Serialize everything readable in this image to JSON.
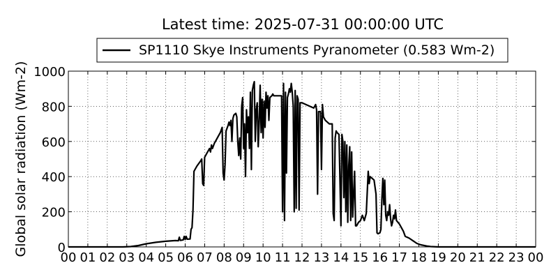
{
  "chart_data": {
    "type": "line",
    "title": "Latest time: 2025-07-31 00:00:00 UTC",
    "ylabel": "Global solar radiation (Wm-2)",
    "xlabel": "",
    "xlim": [
      0,
      24
    ],
    "ylim": [
      0,
      1000
    ],
    "grid": true,
    "legend": {
      "placement": "top-center-outside"
    },
    "x_ticks": [
      0,
      1,
      2,
      3,
      4,
      5,
      6,
      7,
      8,
      9,
      10,
      11,
      12,
      13,
      14,
      15,
      16,
      17,
      18,
      19,
      20,
      21,
      22,
      23,
      24
    ],
    "x_tick_labels": [
      "00",
      "01",
      "02",
      "03",
      "04",
      "05",
      "06",
      "07",
      "08",
      "09",
      "10",
      "11",
      "12",
      "13",
      "14",
      "15",
      "16",
      "17",
      "18",
      "19",
      "20",
      "21",
      "22",
      "23",
      "00"
    ],
    "y_ticks": [
      0,
      200,
      400,
      600,
      800,
      1000
    ],
    "y_tick_labels": [
      "0",
      "200",
      "400",
      "600",
      "800",
      "1000"
    ],
    "series": [
      {
        "name": "SP1110 Skye Instruments Pyranometer (0.583 Wm-2)",
        "color": "#000000",
        "points": [
          [
            0,
            0
          ],
          [
            2.8,
            0
          ],
          [
            3.2,
            2
          ],
          [
            3.6,
            8
          ],
          [
            4.0,
            18
          ],
          [
            4.5,
            26
          ],
          [
            5.0,
            32
          ],
          [
            5.5,
            36
          ],
          [
            5.65,
            35
          ],
          [
            5.7,
            55
          ],
          [
            5.75,
            37
          ],
          [
            5.9,
            40
          ],
          [
            5.95,
            60
          ],
          [
            6.0,
            42
          ],
          [
            6.05,
            60
          ],
          [
            6.1,
            44
          ],
          [
            6.25,
            45
          ],
          [
            6.3,
            100
          ],
          [
            6.35,
            110
          ],
          [
            6.4,
            210
          ],
          [
            6.45,
            430
          ],
          [
            6.6,
            460
          ],
          [
            6.8,
            490
          ],
          [
            6.85,
            500
          ],
          [
            6.9,
            360
          ],
          [
            6.95,
            350
          ],
          [
            7.0,
            510
          ],
          [
            7.1,
            530
          ],
          [
            7.2,
            550
          ],
          [
            7.25,
            560
          ],
          [
            7.3,
            540
          ],
          [
            7.35,
            580
          ],
          [
            7.4,
            560
          ],
          [
            7.5,
            590
          ],
          [
            7.6,
            610
          ],
          [
            7.7,
            630
          ],
          [
            7.8,
            650
          ],
          [
            7.9,
            680
          ],
          [
            7.95,
            420
          ],
          [
            8.0,
            380
          ],
          [
            8.05,
            470
          ],
          [
            8.1,
            660
          ],
          [
            8.2,
            690
          ],
          [
            8.25,
            710
          ],
          [
            8.3,
            690
          ],
          [
            8.35,
            720
          ],
          [
            8.4,
            600
          ],
          [
            8.45,
            730
          ],
          [
            8.5,
            750
          ],
          [
            8.6,
            760
          ],
          [
            8.65,
            740
          ],
          [
            8.7,
            600
          ],
          [
            8.75,
            520
          ],
          [
            8.8,
            620
          ],
          [
            8.85,
            500
          ],
          [
            8.9,
            800
          ],
          [
            8.95,
            850
          ],
          [
            9.0,
            560
          ],
          [
            9.05,
            700
          ],
          [
            9.1,
            400
          ],
          [
            9.15,
            780
          ],
          [
            9.2,
            650
          ],
          [
            9.25,
            740
          ],
          [
            9.3,
            560
          ],
          [
            9.35,
            880
          ],
          [
            9.4,
            440
          ],
          [
            9.45,
            890
          ],
          [
            9.5,
            920
          ],
          [
            9.55,
            940
          ],
          [
            9.6,
            600
          ],
          [
            9.65,
            780
          ],
          [
            9.7,
            820
          ],
          [
            9.75,
            570
          ],
          [
            9.8,
            710
          ],
          [
            9.85,
            920
          ],
          [
            9.9,
            650
          ],
          [
            9.95,
            840
          ],
          [
            10.0,
            620
          ],
          [
            10.05,
            830
          ],
          [
            10.1,
            680
          ],
          [
            10.15,
            880
          ],
          [
            10.2,
            790
          ],
          [
            10.25,
            860
          ],
          [
            10.3,
            720
          ],
          [
            10.35,
            850
          ],
          [
            10.45,
            860
          ],
          [
            10.5,
            870
          ],
          [
            10.55,
            860
          ],
          [
            10.7,
            860
          ],
          [
            10.95,
            860
          ],
          [
            11.0,
            200
          ],
          [
            11.05,
            930
          ],
          [
            11.1,
            150
          ],
          [
            11.15,
            880
          ],
          [
            11.2,
            420
          ],
          [
            11.25,
            850
          ],
          [
            11.3,
            870
          ],
          [
            11.35,
            900
          ],
          [
            11.4,
            880
          ],
          [
            11.45,
            930
          ],
          [
            11.5,
            880
          ],
          [
            11.55,
            800
          ],
          [
            11.6,
            200
          ],
          [
            11.65,
            890
          ],
          [
            11.7,
            220
          ],
          [
            11.75,
            860
          ],
          [
            11.8,
            840
          ],
          [
            11.85,
            210
          ],
          [
            11.9,
            820
          ],
          [
            12.0,
            820
          ],
          [
            12.2,
            810
          ],
          [
            12.4,
            800
          ],
          [
            12.6,
            790
          ],
          [
            12.7,
            810
          ],
          [
            12.75,
            780
          ],
          [
            12.8,
            300
          ],
          [
            12.85,
            770
          ],
          [
            12.95,
            770
          ],
          [
            13.0,
            440
          ],
          [
            13.05,
            810
          ],
          [
            13.1,
            740
          ],
          [
            13.2,
            720
          ],
          [
            13.4,
            700
          ],
          [
            13.55,
            700
          ],
          [
            13.6,
            190
          ],
          [
            13.65,
            150
          ],
          [
            13.7,
            620
          ],
          [
            13.75,
            660
          ],
          [
            13.8,
            650
          ],
          [
            13.9,
            640
          ],
          [
            14.0,
            120
          ],
          [
            14.05,
            640
          ],
          [
            14.1,
            600
          ],
          [
            14.15,
            280
          ],
          [
            14.2,
            600
          ],
          [
            14.25,
            200
          ],
          [
            14.3,
            580
          ],
          [
            14.35,
            140
          ],
          [
            14.4,
            460
          ],
          [
            14.45,
            570
          ],
          [
            14.5,
            150
          ],
          [
            14.55,
            540
          ],
          [
            14.6,
            170
          ],
          [
            14.7,
            430
          ],
          [
            14.75,
            120
          ],
          [
            14.8,
            120
          ],
          [
            14.9,
            140
          ],
          [
            15.0,
            150
          ],
          [
            15.1,
            180
          ],
          [
            15.2,
            150
          ],
          [
            15.3,
            190
          ],
          [
            15.4,
            430
          ],
          [
            15.45,
            360
          ],
          [
            15.5,
            400
          ],
          [
            15.6,
            390
          ],
          [
            15.7,
            380
          ],
          [
            15.8,
            300
          ],
          [
            15.85,
            80
          ],
          [
            15.9,
            75
          ],
          [
            16.0,
            80
          ],
          [
            16.05,
            100
          ],
          [
            16.1,
            270
          ],
          [
            16.15,
            390
          ],
          [
            16.2,
            240
          ],
          [
            16.25,
            380
          ],
          [
            16.3,
            180
          ],
          [
            16.35,
            150
          ],
          [
            16.4,
            200
          ],
          [
            16.45,
            180
          ],
          [
            16.5,
            240
          ],
          [
            16.55,
            160
          ],
          [
            16.6,
            120
          ],
          [
            16.65,
            140
          ],
          [
            16.7,
            180
          ],
          [
            16.75,
            160
          ],
          [
            16.8,
            210
          ],
          [
            16.85,
            150
          ],
          [
            17.0,
            130
          ],
          [
            17.2,
            90
          ],
          [
            17.3,
            60
          ],
          [
            17.5,
            50
          ],
          [
            17.7,
            35
          ],
          [
            17.9,
            20
          ],
          [
            18.1,
            12
          ],
          [
            18.4,
            5
          ],
          [
            18.6,
            2
          ],
          [
            19.0,
            0
          ],
          [
            24,
            0
          ]
        ]
      }
    ]
  }
}
